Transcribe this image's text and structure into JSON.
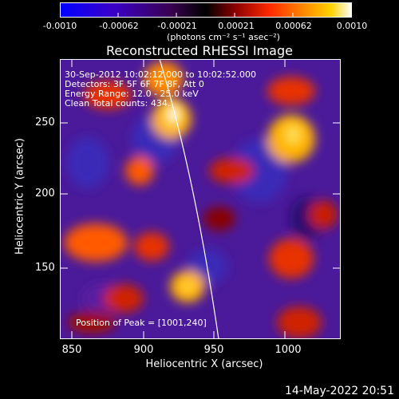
{
  "colorbar": {
    "ticks": [
      "-0.0010",
      "-0.00062",
      "-0.00021",
      "0.00021",
      "0.00062",
      "0.0010"
    ],
    "unit_label": "(photons cm⁻² s⁻¹ asec⁻²)",
    "colors": [
      "#0000ff",
      "#3a00c8",
      "#3a0050",
      "#000000",
      "#8a0000",
      "#ff2a00",
      "#ff8c00",
      "#ffd200",
      "#ffffff"
    ]
  },
  "plot": {
    "title": "Reconstructed RHESSI Image",
    "xlabel": "Heliocentric X (arcsec)",
    "ylabel": "Heliocentric Y (arcsec)",
    "xticks": [
      "850",
      "900",
      "950",
      "1000"
    ],
    "yticks": [
      "250",
      "200",
      "150"
    ],
    "info_lines": [
      "30-Sep-2012 10:02:12.000 to 10:02:52.000",
      "Detectors: 3F 5F 6F 7F 8F, Att 0",
      "Energy Range: 12.0 - 25.0 keV",
      "Clean     Total counts: 434."
    ],
    "peak_label": "Position of Peak = [1001,240]"
  },
  "footer": {
    "date": "14-May-2022 20:51"
  }
}
